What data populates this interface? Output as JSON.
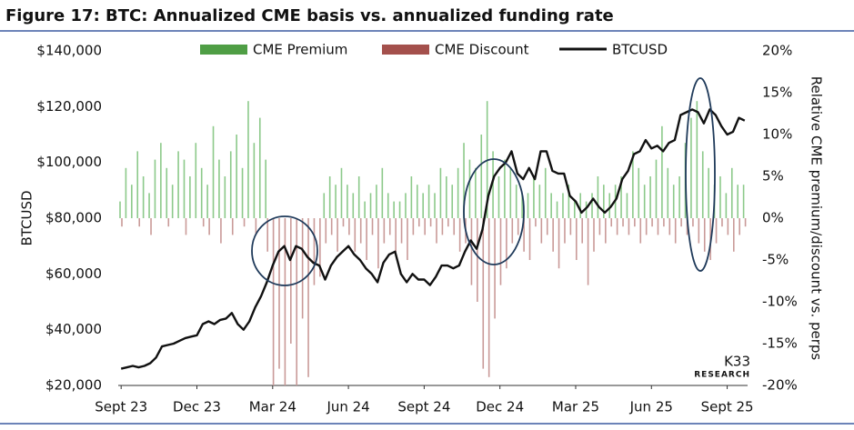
{
  "chart_data": {
    "type": "bar-line",
    "title": "Figure 17: BTC: Annualized CME basis vs. annualized funding rate",
    "y_label": "BTCUSD",
    "y2_label": "Relative CME premium/discount vs. perps",
    "logo": "K33",
    "logo_sub": "RESEARCH",
    "categories": [
      "Sept 23",
      null,
      null,
      null,
      null,
      null,
      null,
      null,
      null,
      null,
      null,
      null,
      null,
      "Dec 23",
      null,
      null,
      null,
      null,
      null,
      null,
      null,
      null,
      null,
      null,
      null,
      null,
      "Mar 24",
      null,
      null,
      null,
      null,
      null,
      null,
      null,
      null,
      null,
      null,
      null,
      null,
      "Jun 24",
      null,
      null,
      null,
      null,
      null,
      null,
      null,
      null,
      null,
      null,
      null,
      null,
      "Sept 24",
      null,
      null,
      null,
      null,
      null,
      null,
      null,
      null,
      null,
      null,
      null,
      null,
      "Dec 24",
      null,
      null,
      null,
      null,
      null,
      null,
      null,
      null,
      null,
      null,
      null,
      null,
      "Mar 25",
      null,
      null,
      null,
      null,
      null,
      null,
      null,
      null,
      null,
      null,
      null,
      null,
      "Jun 25",
      null,
      null,
      null,
      null,
      null,
      null,
      null,
      null,
      null,
      null,
      null,
      null,
      "Sept 25",
      null,
      null,
      null
    ],
    "series": [
      {
        "name": "CME Premium",
        "color": "#8cc98a",
        "axis": "y2",
        "legend_color": "#4f9e45",
        "values": [
          2,
          6,
          4,
          8,
          5,
          3,
          7,
          9,
          6,
          4,
          8,
          7,
          5,
          9,
          6,
          4,
          11,
          7,
          5,
          8,
          10,
          6,
          14,
          9,
          12,
          7,
          null,
          null,
          null,
          null,
          null,
          null,
          null,
          null,
          null,
          3,
          5,
          4,
          6,
          4,
          3,
          5,
          2,
          3,
          4,
          6,
          3,
          2,
          2,
          3,
          5,
          4,
          3,
          4,
          3,
          6,
          5,
          4,
          6,
          9,
          7,
          6,
          10,
          14,
          8,
          5,
          7,
          6,
          4,
          3,
          3,
          5,
          4,
          6,
          3,
          2,
          3,
          4,
          2,
          3,
          2,
          3,
          5,
          4,
          3,
          4,
          5,
          3,
          8,
          6,
          4,
          5,
          7,
          11,
          6,
          4,
          5,
          9,
          12,
          14,
          8,
          6,
          4,
          5,
          3,
          6,
          4,
          4
        ]
      },
      {
        "name": "CME Discount",
        "color": "#c99a98",
        "axis": "y2",
        "legend_color": "#a4504c",
        "values": [
          -1,
          null,
          null,
          -1,
          null,
          -2,
          null,
          null,
          -1,
          null,
          null,
          -2,
          null,
          null,
          -1,
          -2,
          null,
          -3,
          null,
          -2,
          null,
          -1,
          null,
          -2,
          null,
          -4,
          -20,
          -18,
          -20,
          -15,
          -20,
          -12,
          -19,
          -8,
          -7,
          -3,
          -2,
          -4,
          -1,
          -2,
          -4,
          -3,
          -5,
          -2,
          -6,
          -3,
          -2,
          -4,
          -3,
          -5,
          -2,
          -1,
          -2,
          -1,
          -3,
          -2,
          -1,
          -2,
          -4,
          -3,
          -8,
          -10,
          -18,
          -19,
          -12,
          -8,
          -6,
          -3,
          -2,
          -4,
          -5,
          -1,
          -3,
          -2,
          -4,
          -6,
          -3,
          -2,
          -5,
          -3,
          -8,
          -4,
          -2,
          -3,
          -1,
          -2,
          -1,
          -2,
          -1,
          -3,
          -2,
          -1,
          -2,
          -1,
          -2,
          -3,
          -1,
          -2,
          -1,
          -3,
          -4,
          -5,
          -3,
          -1,
          -2,
          -4,
          -2,
          -1
        ]
      },
      {
        "name": "BTCUSD",
        "color": "#111111",
        "values": [
          26000,
          26500,
          27000,
          26500,
          27000,
          28000,
          30000,
          34000,
          34500,
          35000,
          36000,
          37000,
          37500,
          38000,
          42000,
          43000,
          42000,
          43500,
          44000,
          46000,
          42000,
          40000,
          43000,
          48000,
          52000,
          57000,
          63000,
          68000,
          70000,
          65000,
          70000,
          69000,
          66000,
          64000,
          63000,
          58000,
          63000,
          66000,
          68000,
          70000,
          67000,
          65000,
          62000,
          60000,
          57000,
          64000,
          67000,
          68000,
          60000,
          57000,
          60000,
          58000,
          58000,
          56000,
          59000,
          63000,
          63000,
          62000,
          63000,
          68000,
          72000,
          69000,
          76000,
          88000,
          95000,
          98000,
          100000,
          104000,
          96000,
          94000,
          98000,
          94000,
          104000,
          104000,
          97000,
          96000,
          96000,
          88000,
          86000,
          82000,
          84000,
          87000,
          84000,
          82000,
          84000,
          87000,
          94000,
          97000,
          103000,
          104000,
          108000,
          105000,
          106000,
          104000,
          107000,
          108000,
          117000,
          118000,
          119000,
          118000,
          114000,
          119000,
          117000,
          113000,
          110000,
          111000,
          116000,
          115000
        ]
      }
    ],
    "ylim": [
      20000,
      140000
    ],
    "yticks": [
      {
        "value": 20000,
        "label": "$20,000"
      },
      {
        "value": 40000,
        "label": "$40,000"
      },
      {
        "value": 60000,
        "label": "$60,000"
      },
      {
        "value": 80000,
        "label": "$80,000"
      },
      {
        "value": 100000,
        "label": "$100,000"
      },
      {
        "value": 120000,
        "label": "$120,000"
      },
      {
        "value": 140000,
        "label": "$140,000"
      }
    ],
    "y2lim": [
      -20,
      20
    ],
    "y2ticks": [
      {
        "value": -20,
        "label": "-20%"
      },
      {
        "value": -15,
        "label": "-15%"
      },
      {
        "value": -10,
        "label": "-10%"
      },
      {
        "value": -5,
        "label": "-5%"
      },
      {
        "value": 0,
        "label": "0%"
      },
      {
        "value": 5,
        "label": "5%"
      },
      {
        "value": 10,
        "label": "10%"
      },
      {
        "value": 15,
        "label": "15%"
      },
      {
        "value": 20,
        "label": "20%"
      }
    ]
  }
}
